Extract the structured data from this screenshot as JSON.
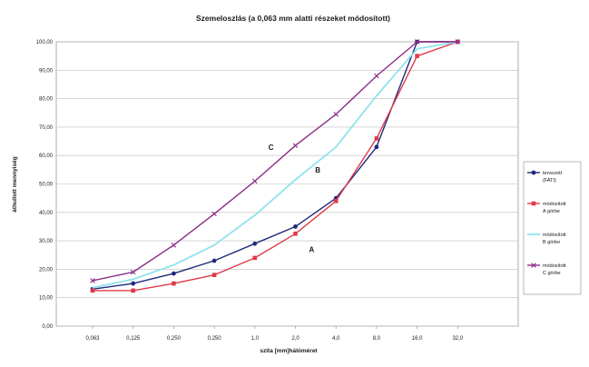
{
  "chart_data": {
    "type": "line",
    "title": "Szemeloszlás (a 0,063 mm alatti részeket módosított)",
    "xlabel": "szita [mm]hálóméret",
    "ylabel": "áthullott mennyiség",
    "categories": [
      "0,063",
      "0,125",
      "0,250",
      "0,250",
      "1,0",
      "2,0",
      "4,0",
      "8,0",
      "16,0",
      "32,0"
    ],
    "yticks": [
      "0,00",
      "10,00",
      "20,00",
      "30,00",
      "40,00",
      "50,00",
      "60,00",
      "70,00",
      "80,00",
      "90,00",
      "100,00"
    ],
    "ylim": [
      0,
      100
    ],
    "grid": true,
    "legend": "right",
    "series": [
      {
        "name": "tervezett (FATI)",
        "color": "#1f2a7a",
        "marker": "circle",
        "values": [
          13,
          15,
          18.5,
          23,
          29,
          35,
          45,
          63,
          100,
          100
        ]
      },
      {
        "name": "módosított A görbe",
        "color": "#e03a4a",
        "marker": "square",
        "values": [
          12.5,
          12.5,
          15,
          18,
          24,
          32.5,
          44,
          66,
          95,
          100
        ]
      },
      {
        "name": "módosított B görbe",
        "color": "#8fe3ec",
        "marker": "none",
        "values": [
          13.5,
          16.5,
          21.5,
          28.5,
          39,
          51.5,
          63,
          81,
          97.5,
          100
        ]
      },
      {
        "name": "módosított C görbe",
        "color": "#8a2d86",
        "marker": "x",
        "values": [
          16,
          19,
          28.5,
          39.5,
          51,
          63.5,
          74.5,
          88,
          100,
          100
        ]
      }
    ],
    "annotations": [
      {
        "text": "C",
        "x": 4.4,
        "y": 62
      },
      {
        "text": "B",
        "x": 5.55,
        "y": 54
      },
      {
        "text": "A",
        "x": 5.4,
        "y": 26
      }
    ]
  }
}
